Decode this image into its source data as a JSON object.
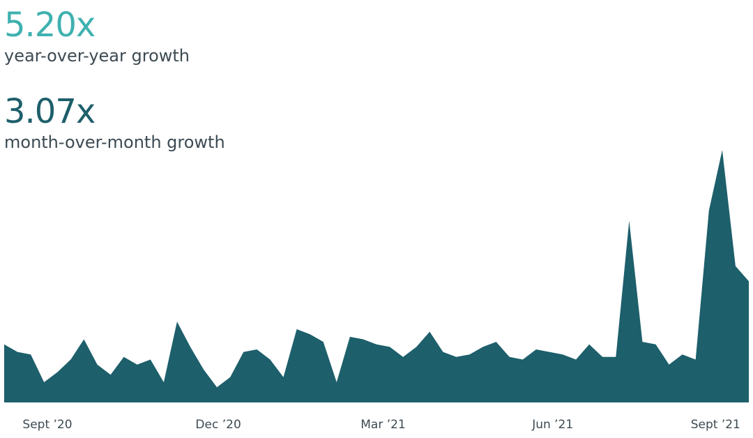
{
  "stats": {
    "yoy": {
      "value": "5.20x",
      "label": "year-over-year growth",
      "color": "#3fb1b0"
    },
    "mom": {
      "value": "3.07x",
      "label": "month-over-month growth",
      "color": "#1d5f6b"
    }
  },
  "chart_data": {
    "type": "area",
    "title": "",
    "xlabel": "",
    "ylabel": "",
    "grid": false,
    "legend": "none",
    "color": "#1d5f6b",
    "x_ticks": [
      {
        "label": "Sept ’20",
        "index": 3.25
      },
      {
        "label": "Dec ’20",
        "index": 16.1
      },
      {
        "label": "Mar ’21",
        "index": 28.5
      },
      {
        "label": "Jun ’21",
        "index": 41.25
      },
      {
        "label": "Sept ’21",
        "index": 53.5
      }
    ],
    "ylim": [
      0,
      100
    ],
    "values": [
      23,
      20,
      19,
      8,
      12,
      17,
      25,
      15,
      11,
      18,
      15,
      17,
      8,
      32,
      22,
      13,
      6,
      10,
      20,
      21,
      17,
      10,
      29,
      27,
      24,
      8,
      26,
      25,
      23,
      22,
      18,
      22,
      28,
      20,
      18,
      19,
      22,
      24,
      18,
      17,
      21,
      20,
      19,
      17,
      23,
      18,
      18,
      72,
      24,
      23,
      15,
      19,
      17,
      76,
      100,
      54,
      48
    ]
  }
}
